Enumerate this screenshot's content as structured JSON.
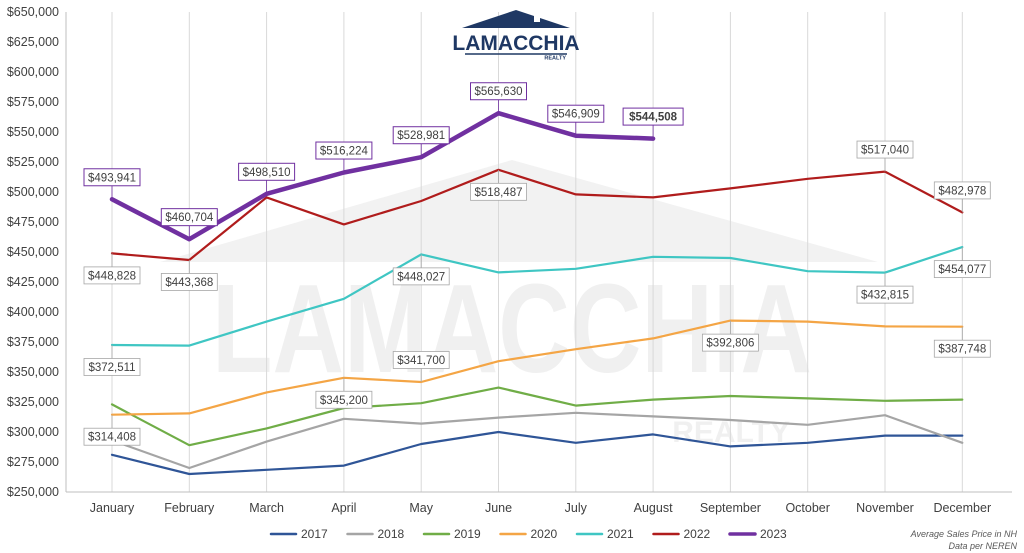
{
  "brand": {
    "logo_text": "LAMACCHIA",
    "logo_sub": "REALTY"
  },
  "notes": [
    "Average Sales Price in NH",
    "Data per NEREN"
  ],
  "chart_data": {
    "type": "line",
    "categories": [
      "January",
      "February",
      "March",
      "April",
      "May",
      "June",
      "July",
      "August",
      "September",
      "October",
      "November",
      "December"
    ],
    "ylim": [
      250000,
      650000
    ],
    "ytick_step": 25000,
    "ytick_format": "currency",
    "grid": {
      "vertical": true,
      "horizontal": false
    },
    "legend_position": "bottom",
    "series": [
      {
        "name": "2017",
        "color": "#2f5597",
        "values": [
          281000,
          265000,
          268500,
          272000,
          290000,
          300000,
          291000,
          298000,
          288000,
          291000,
          297000,
          297000
        ]
      },
      {
        "name": "2018",
        "color": "#a5a5a5",
        "values": [
          293000,
          270000,
          292000,
          311000,
          307000,
          312000,
          316000,
          313000,
          310000,
          306000,
          314000,
          291000
        ]
      },
      {
        "name": "2019",
        "color": "#70ad47",
        "values": [
          323000,
          289000,
          303000,
          320000,
          324000,
          337000,
          322000,
          327000,
          330000,
          328000,
          326000,
          327000
        ]
      },
      {
        "name": "2020",
        "color": "#f4a545",
        "values": [
          314408,
          315500,
          333000,
          345200,
          341700,
          359000,
          369000,
          378000,
          392806,
          392000,
          388000,
          387748
        ]
      },
      {
        "name": "2021",
        "color": "#3fc6c3",
        "values": [
          372511,
          372000,
          392000,
          411000,
          448027,
          433000,
          436000,
          446000,
          445000,
          434000,
          432815,
          454077
        ]
      },
      {
        "name": "2022",
        "color": "#b01c1c",
        "values": [
          448828,
          443368,
          495500,
          473000,
          492500,
          518487,
          498000,
          495500,
          503000,
          511000,
          517040,
          482978
        ]
      },
      {
        "name": "2023",
        "color": "#7030a0",
        "bold": true,
        "values": [
          493941,
          460704,
          498510,
          516224,
          528981,
          565630,
          546909,
          544508,
          null,
          null,
          null,
          null
        ]
      }
    ],
    "data_labels": [
      {
        "series": "2023",
        "index": 0,
        "text": "$493,941",
        "pos": "above",
        "boxed": true
      },
      {
        "series": "2023",
        "index": 1,
        "text": "$460,704",
        "pos": "above",
        "boxed": true
      },
      {
        "series": "2023",
        "index": 2,
        "text": "$498,510",
        "pos": "above",
        "boxed": true
      },
      {
        "series": "2023",
        "index": 3,
        "text": "$516,224",
        "pos": "above",
        "boxed": true
      },
      {
        "series": "2023",
        "index": 4,
        "text": "$528,981",
        "pos": "above",
        "boxed": true
      },
      {
        "series": "2023",
        "index": 5,
        "text": "$565,630",
        "pos": "above",
        "boxed": true
      },
      {
        "series": "2023",
        "index": 6,
        "text": "$546,909",
        "pos": "above",
        "boxed": true
      },
      {
        "series": "2023",
        "index": 7,
        "text": "$544,508",
        "pos": "above",
        "boxed": true,
        "bold": true
      },
      {
        "series": "2022",
        "index": 0,
        "text": "$448,828",
        "pos": "below"
      },
      {
        "series": "2022",
        "index": 1,
        "text": "$443,368",
        "pos": "below"
      },
      {
        "series": "2022",
        "index": 5,
        "text": "$518,487",
        "pos": "below"
      },
      {
        "series": "2022",
        "index": 10,
        "text": "$517,040",
        "pos": "above"
      },
      {
        "series": "2022",
        "index": 11,
        "text": "$482,978",
        "pos": "above"
      },
      {
        "series": "2021",
        "index": 0,
        "text": "$372,511",
        "pos": "below"
      },
      {
        "series": "2021",
        "index": 4,
        "text": "$448,027",
        "pos": "below"
      },
      {
        "series": "2021",
        "index": 10,
        "text": "$432,815",
        "pos": "below"
      },
      {
        "series": "2021",
        "index": 11,
        "text": "$454,077",
        "pos": "below"
      },
      {
        "series": "2020",
        "index": 0,
        "text": "$314,408",
        "pos": "below"
      },
      {
        "series": "2020",
        "index": 3,
        "text": "$345,200",
        "pos": "below"
      },
      {
        "series": "2020",
        "index": 4,
        "text": "$341,700",
        "pos": "above"
      },
      {
        "series": "2020",
        "index": 8,
        "text": "$392,806",
        "pos": "below"
      },
      {
        "series": "2020",
        "index": 11,
        "text": "$387,748",
        "pos": "below"
      }
    ]
  }
}
